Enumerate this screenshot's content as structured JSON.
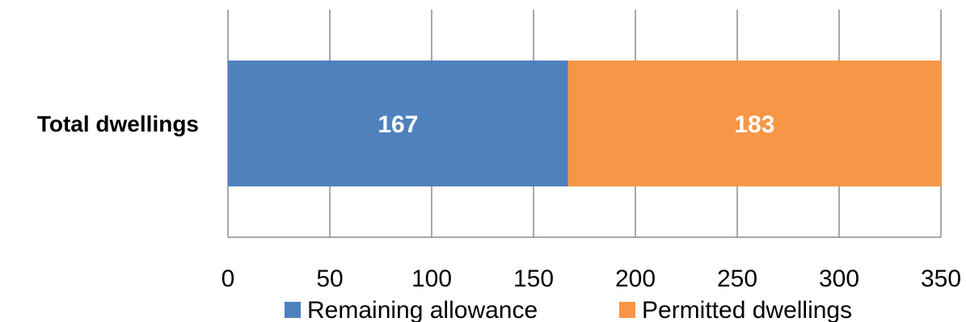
{
  "chart_data": {
    "type": "bar",
    "orientation": "horizontal",
    "stacked": true,
    "categories": [
      "Total dwellings"
    ],
    "series": [
      {
        "name": "Remaining allowance",
        "values": [
          167
        ],
        "color": "#4F81BD"
      },
      {
        "name": "Permitted dwellings",
        "values": [
          183
        ],
        "color": "#F79646"
      }
    ],
    "xlim": [
      0,
      350
    ],
    "xticks": [
      0,
      50,
      100,
      150,
      200,
      250,
      300,
      350
    ],
    "title": "",
    "xlabel": "",
    "ylabel": "",
    "grid": "vertical",
    "legend_position": "bottom"
  }
}
